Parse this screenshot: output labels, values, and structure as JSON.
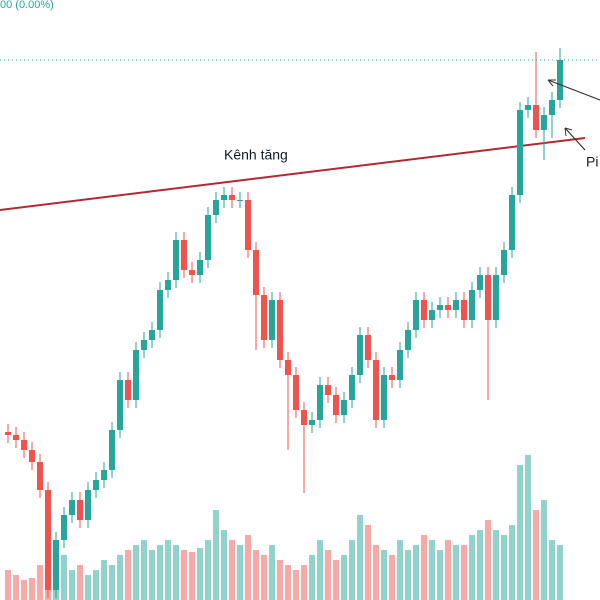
{
  "header": {
    "status": "00 (0.00%)"
  },
  "chart_data": {
    "type": "candlestick",
    "annotations": [
      "Kênh tăng",
      "Pi"
    ],
    "up_color": "#26a69a",
    "down_color": "#ef5350",
    "ylim": [
      0,
      600
    ],
    "y2lim": [
      0,
      600
    ],
    "open": [
      168,
      165,
      160,
      150,
      138,
      110,
      10,
      60,
      85,
      100,
      80,
      110,
      120,
      130,
      170,
      220,
      200,
      250,
      260,
      270,
      310,
      320,
      360,
      330,
      325,
      340,
      385,
      400,
      405,
      400,
      400,
      350,
      305,
      260,
      300,
      240,
      225,
      190,
      175,
      180,
      215,
      205,
      185,
      200,
      225,
      265,
      240,
      180,
      225,
      220,
      250,
      270,
      300,
      280,
      290,
      295,
      290,
      300,
      280,
      310,
      325,
      280,
      325,
      350,
      405,
      490,
      495,
      470,
      485,
      500
    ],
    "high": [
      176,
      173,
      168,
      158,
      146,
      118,
      68,
      93,
      108,
      108,
      118,
      128,
      138,
      178,
      228,
      228,
      258,
      268,
      278,
      318,
      328,
      368,
      368,
      338,
      348,
      393,
      408,
      413,
      413,
      408,
      408,
      358,
      313,
      308,
      308,
      248,
      233,
      198,
      188,
      223,
      223,
      213,
      208,
      233,
      273,
      273,
      248,
      233,
      233,
      258,
      278,
      308,
      308,
      298,
      303,
      303,
      308,
      308,
      318,
      333,
      333,
      333,
      358,
      413,
      498,
      503,
      548,
      493,
      508,
      552
    ],
    "low": [
      157,
      152,
      142,
      130,
      102,
      2,
      2,
      52,
      77,
      72,
      72,
      102,
      112,
      122,
      162,
      192,
      192,
      242,
      252,
      262,
      302,
      312,
      322,
      317,
      317,
      332,
      377,
      392,
      392,
      392,
      342,
      250,
      252,
      252,
      232,
      150,
      182,
      107,
      167,
      172,
      197,
      177,
      177,
      192,
      217,
      232,
      172,
      172,
      212,
      212,
      242,
      262,
      272,
      272,
      282,
      282,
      282,
      272,
      272,
      302,
      200,
      272,
      317,
      342,
      397,
      482,
      462,
      440,
      462,
      492
    ],
    "close": [
      165,
      160,
      150,
      138,
      110,
      10,
      60,
      85,
      100,
      80,
      110,
      120,
      130,
      170,
      220,
      200,
      250,
      260,
      270,
      310,
      320,
      360,
      330,
      325,
      340,
      385,
      400,
      405,
      400,
      400,
      350,
      305,
      260,
      300,
      240,
      225,
      190,
      175,
      180,
      215,
      205,
      185,
      200,
      225,
      265,
      240,
      180,
      225,
      220,
      250,
      270,
      300,
      280,
      290,
      295,
      290,
      300,
      280,
      310,
      325,
      280,
      325,
      350,
      405,
      490,
      495,
      470,
      485,
      500,
      540
    ],
    "volume": [
      30,
      25,
      20,
      22,
      35,
      60,
      50,
      45,
      30,
      35,
      25,
      30,
      40,
      35,
      45,
      50,
      55,
      60,
      50,
      55,
      60,
      55,
      50,
      48,
      52,
      60,
      90,
      70,
      60,
      55,
      65,
      50,
      45,
      55,
      40,
      35,
      30,
      35,
      45,
      60,
      50,
      40,
      45,
      60,
      85,
      75,
      55,
      50,
      45,
      60,
      50,
      55,
      65,
      60,
      50,
      60,
      55,
      55,
      65,
      70,
      80,
      70,
      65,
      75,
      135,
      145,
      90,
      100,
      60,
      55
    ]
  }
}
